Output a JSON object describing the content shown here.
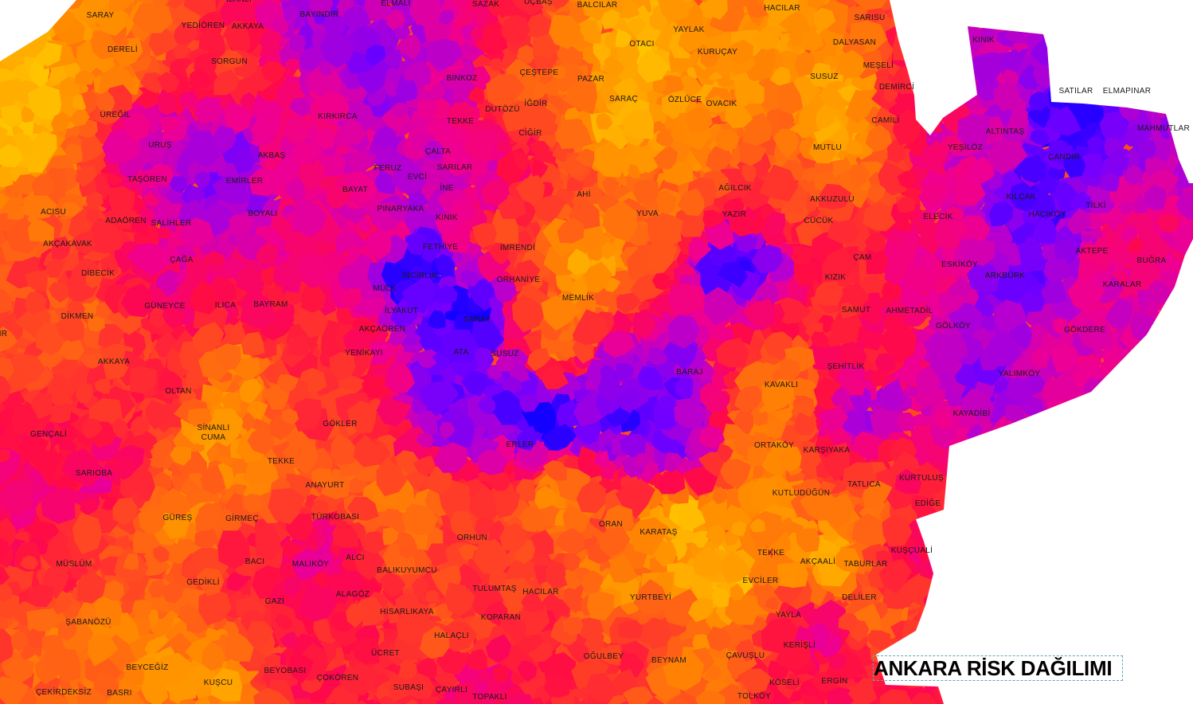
{
  "title": "ANKARA RİSK DAĞILIMI",
  "palette": {
    "lowest_risk": "#FFC400",
    "low_risk": "#FF8A00",
    "medium_risk": "#FF3C28",
    "high_risk": "#FF0A46",
    "higher_risk": "#F00090",
    "very_high_risk": "#B400D2",
    "severe_risk": "#7000FF",
    "highest_risk": "#1400FF",
    "no_data": "#FFFFFF"
  },
  "labels": [
    "SARAY",
    "İLANLI",
    "YEDİÖREN",
    "AKKAYA",
    "BAYINDIR",
    "ELMALI",
    "SAZAK",
    "UÇBAŞ",
    "BALCILAR",
    "HACILAR",
    "SARISU",
    "DERELİ",
    "SORGUN",
    "YAYLAK",
    "OTACI",
    "KURUÇAY",
    "DALYASAN",
    "KINIK",
    "MEŞELİ",
    "BİNKOZ",
    "ÇEŞTEPE",
    "PAZAR",
    "SUSUZ",
    "DEMİRCİ",
    "SATILAR",
    "ELMAPINAR",
    "ÜREĞİL",
    "KIRKIRCA",
    "DUTÖZÜ",
    "İĞDİR",
    "TEKKE",
    "SARAÇ",
    "ÖZLÜCE",
    "OVACIK",
    "CAMİLİ",
    "ALTINTAŞ",
    "MAHMUTLAR",
    "CİĞİR",
    "URUŞ",
    "MUTLU",
    "YEŞİLÖZ",
    "ÇALTA",
    "AKBAŞ",
    "ÇANDIR",
    "FERUZ",
    "SARILAR",
    "EVCİ",
    "TAŞÖREN",
    "EMİRLER",
    "BAYAT",
    "İNE",
    "AHİ",
    "AĞILCIK",
    "AKKUZULU",
    "KILÇAK",
    "ACISU",
    "BOYALI",
    "PINARYAKA",
    "KINIK",
    "YUVA",
    "YAZIR",
    "CÜCÜK",
    "ELECİK",
    "HACIKÖY",
    "TİLKİ",
    "ADAÖREN",
    "SALİHLER",
    "AKÇAKAVAK",
    "FETHİYE",
    "İMRENDİ",
    "AKTEPE",
    "ÇAĞA",
    "ÇAM",
    "BUĞRA",
    "ESKİKÖY",
    "DİBECİK",
    "İNCİRLİK",
    "KIZIK",
    "ARKBÜRK",
    "ORHANİYE",
    "KARALAR",
    "MÜLK",
    "MEMLİK",
    "GÜNEYCE",
    "ILICA",
    "BAYRAM",
    "İLYAKUT",
    "SAMUT",
    "AHMETADİL",
    "DİKMEN",
    "SARAY",
    "GÖLKÖY",
    "AKÇAÖREN",
    "GÖKDERE",
    "IR",
    "ATA",
    "SUSUZ",
    "YENİKAYI",
    "AKKAYA",
    "ŞEHİTLİK",
    "BARAJ",
    "YALIMKÖY",
    "KAVAKLI",
    "OLTAN",
    "KAYADİBİ",
    "GÖKLER",
    "SİNANLI",
    "CUMA",
    "GENÇALİ",
    "ERLER",
    "ORTAKÖY",
    "KARŞIYAKA",
    "TEKKE",
    "SARIOBA",
    "KURTULUŞ",
    "ANAYURT",
    "TATLICA",
    "KUTLUDÜĞÜN",
    "EDİĞE",
    "GÜREŞ",
    "GİRMEÇ",
    "TÜRKOBASI",
    "ORAN",
    "KARATAŞ",
    "ORHUN",
    "TEKKE",
    "AKÇAALİ",
    "TABURLAR",
    "KUŞÇUALİ",
    "BACI",
    "ALCI",
    "MALIKÖY",
    "MÜSLÜM",
    "BALIKUYUMCU",
    "GEDİKLİ",
    "EVCİLER",
    "TULUMTAŞ",
    "HACILAR",
    "ALAGÖZ",
    "YURTBEYİ",
    "DELİLER",
    "GAZİ",
    "HİSARLIKAYA",
    "YAYLA",
    "KOPARAN",
    "ŞABANÖZÜ",
    "HALAÇLI",
    "KERİŞLİ",
    "ÜCRET",
    "ÇAVUŞLU",
    "OĞULBEY",
    "BEYNAM",
    "BEYCEĞİZ",
    "BEYOBASI",
    "ÇOKÖREN",
    "KUŞCU",
    "KÖSELİ",
    "ERGİN",
    "SUBAŞI",
    "ÇAYIRLI",
    "ÇEKİRDEKSİZ",
    "BASRI",
    "TOPAKLI",
    "TOLKÖY"
  ]
}
